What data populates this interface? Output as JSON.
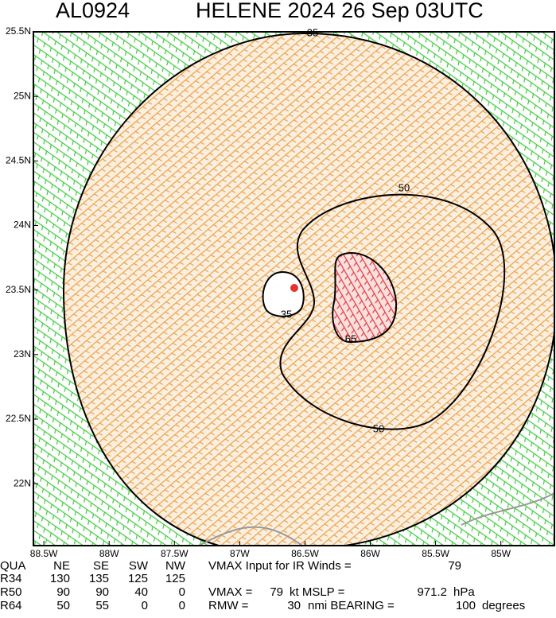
{
  "header": {
    "storm_id": "AL0924",
    "title": "HELENE 2024 26 Sep 03UTC"
  },
  "map": {
    "xlim": [
      -88.58,
      -84.59
    ],
    "ylim": [
      21.52,
      25.5
    ],
    "xticks": [
      {
        "value": -88.5,
        "label": "88.5W"
      },
      {
        "value": -88,
        "label": "88W"
      },
      {
        "value": -87.5,
        "label": "87.5W"
      },
      {
        "value": -87,
        "label": "87W"
      },
      {
        "value": -86.5,
        "label": "86.5W"
      },
      {
        "value": -86,
        "label": "86W"
      },
      {
        "value": -85.5,
        "label": "85.5W"
      },
      {
        "value": -85,
        "label": "85W"
      }
    ],
    "yticks": [
      {
        "value": 22,
        "label": "22N"
      },
      {
        "value": 22.5,
        "label": "22.5N"
      },
      {
        "value": 23,
        "label": "23N"
      },
      {
        "value": 23.5,
        "label": "23.5N"
      },
      {
        "value": 24,
        "label": "24N"
      },
      {
        "value": 24.5,
        "label": "24.5N"
      },
      {
        "value": 25,
        "label": "25N"
      },
      {
        "value": 25.5,
        "label": "25.5N"
      }
    ],
    "contour_labels": [
      "35",
      "50",
      "50",
      "65",
      "35"
    ]
  },
  "table": {
    "header": [
      "QUA",
      "NE",
      "SE",
      "SW",
      "NW"
    ],
    "rows": [
      [
        "R34",
        130,
        135,
        125,
        125
      ],
      [
        "R50",
        90,
        90,
        40,
        0
      ],
      [
        "R64",
        50,
        55,
        0,
        0
      ]
    ]
  },
  "info": {
    "ir_label": "VMAX Input for IR Winds =",
    "ir_value": 79,
    "vmax_label": "VMAX =",
    "vmax_value": 79,
    "mslp_label": "kt MSLP =",
    "mslp_value": 971.2,
    "mslp_unit": "hPa",
    "rmw_label": "RMW =",
    "rmw_value": 30,
    "bearing_label": "nmi BEARING =",
    "bearing_value": 100,
    "bearing_unit": "degrees"
  }
}
